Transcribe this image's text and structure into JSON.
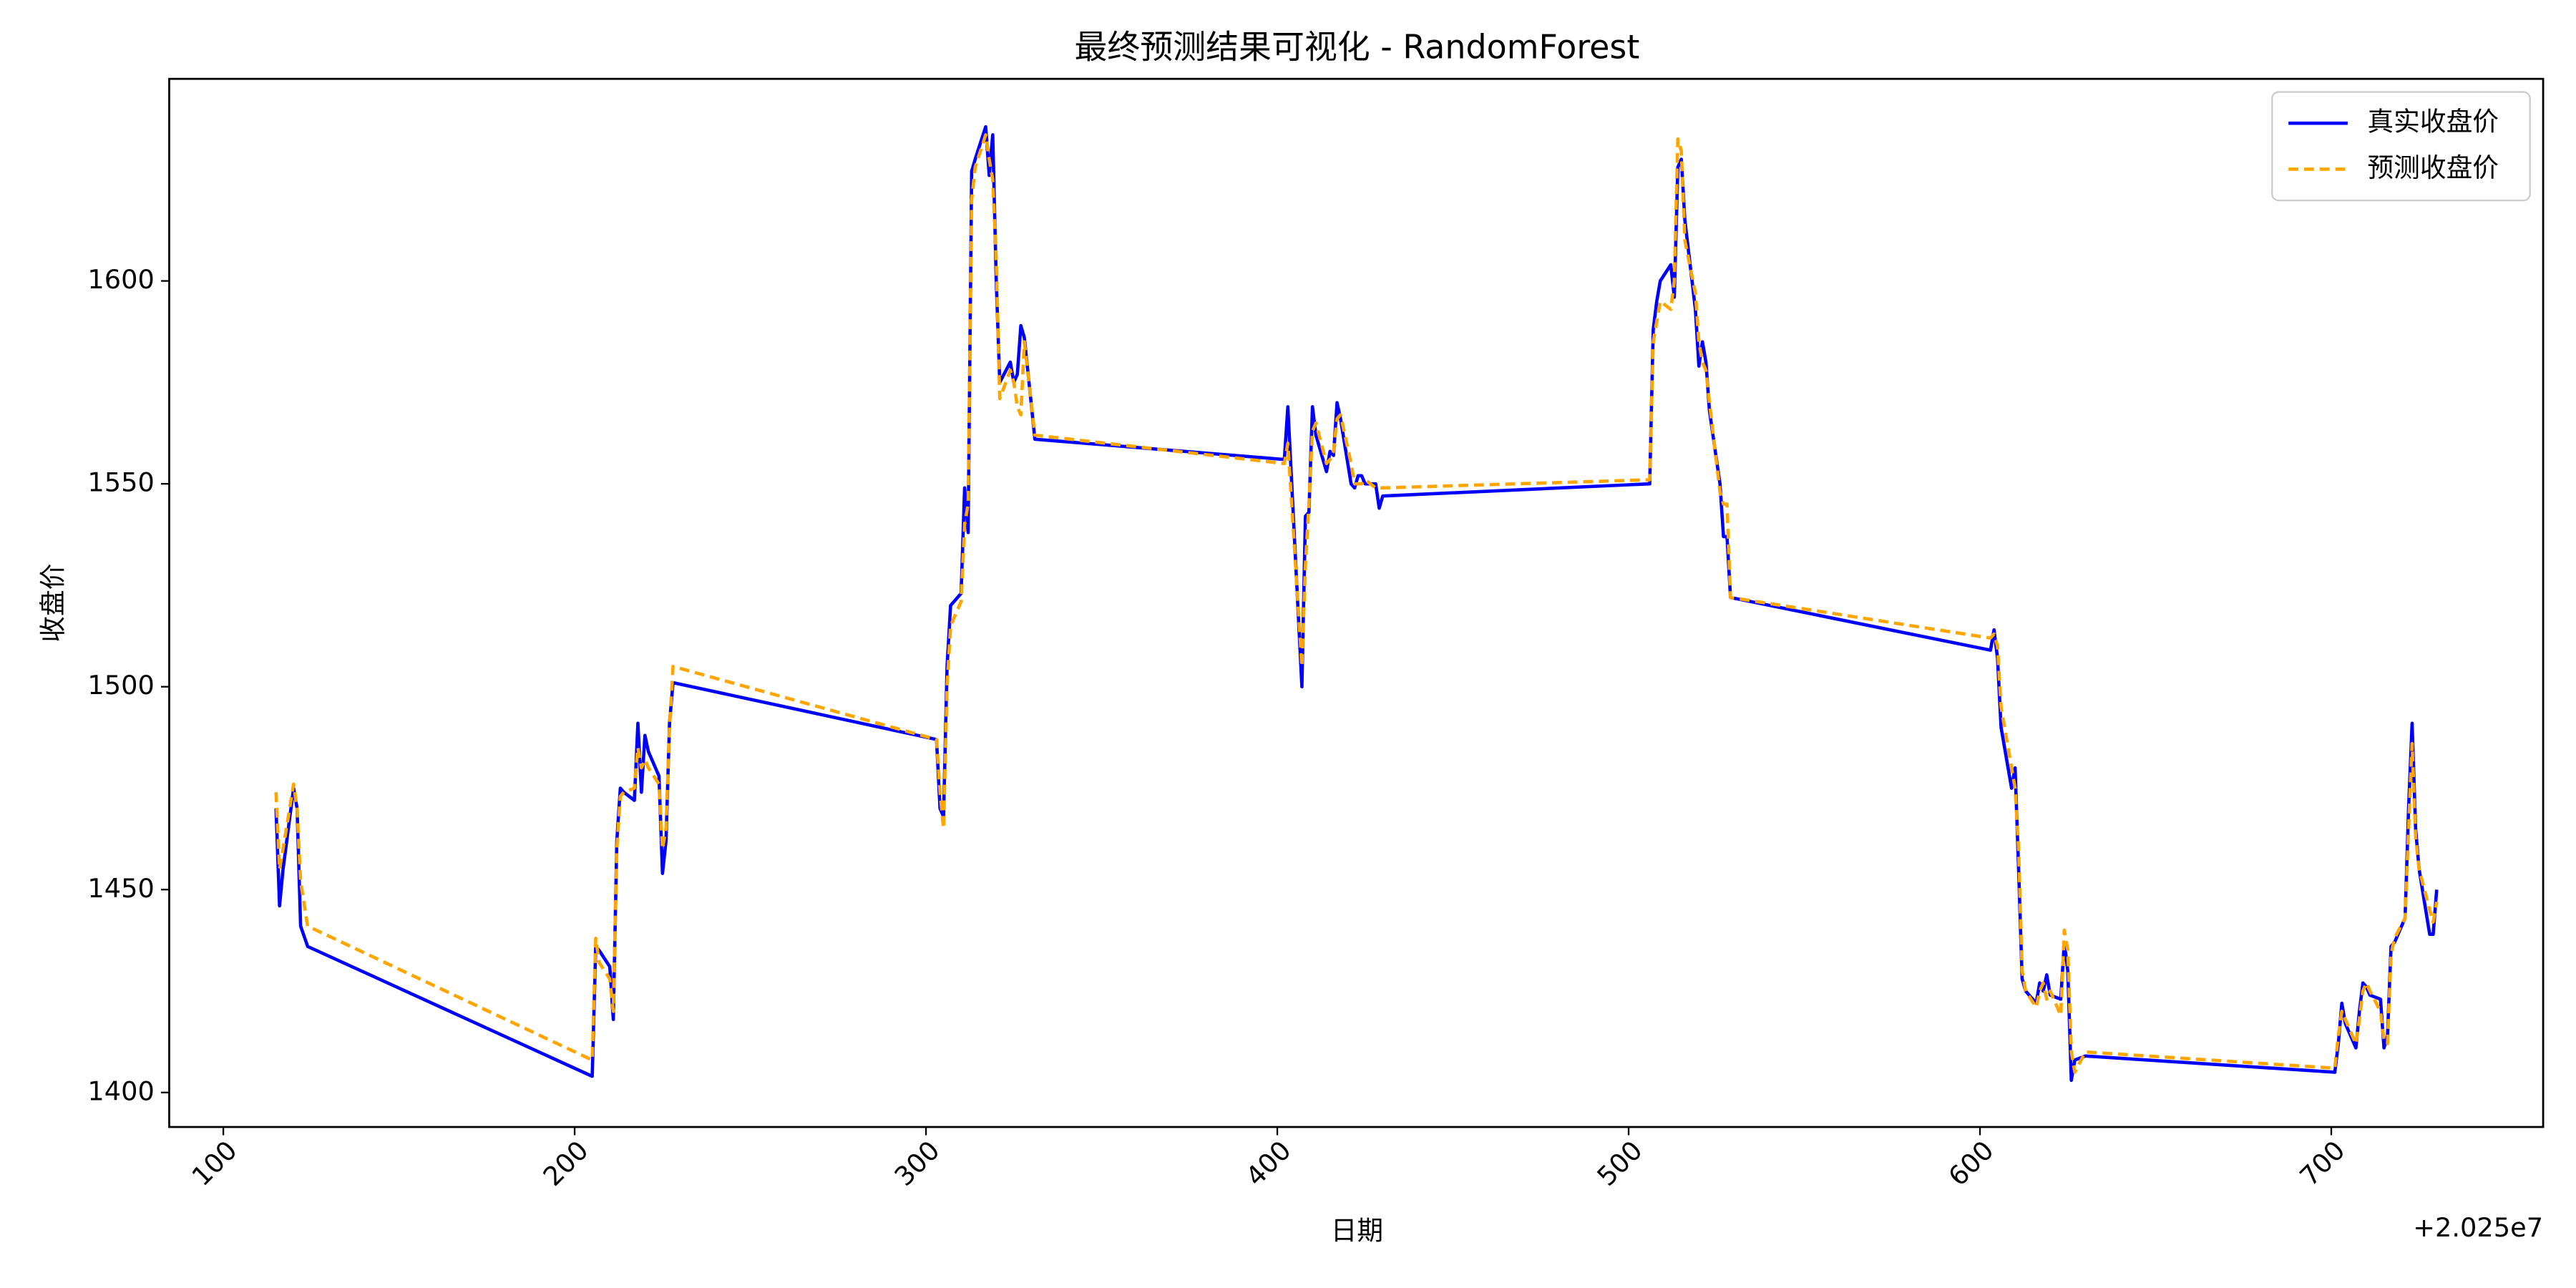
{
  "chart_data": {
    "type": "line",
    "title": "最终预测结果可视化 - RandomForest",
    "xlabel": "日期",
    "ylabel": "收盘价",
    "x_offset_label": "+2.025e7",
    "x": [
      115,
      116,
      117,
      120,
      121,
      122,
      124,
      205,
      206,
      207,
      210,
      211,
      212,
      213,
      214,
      217,
      218,
      219,
      220,
      221,
      224,
      225,
      226,
      227,
      228,
      303,
      304,
      305,
      306,
      307,
      310,
      311,
      312,
      313,
      314,
      317,
      318,
      319,
      320,
      321,
      324,
      325,
      326,
      327,
      328,
      331,
      402,
      403,
      407,
      408,
      409,
      410,
      411,
      414,
      415,
      416,
      417,
      418,
      421,
      422,
      423,
      424,
      425,
      428,
      429,
      430,
      506,
      507,
      508,
      509,
      512,
      513,
      514,
      515,
      516,
      519,
      520,
      521,
      522,
      523,
      526,
      527,
      528,
      529,
      603,
      604,
      605,
      606,
      609,
      610,
      611,
      612,
      613,
      616,
      617,
      618,
      619,
      620,
      623,
      624,
      625,
      626,
      627,
      630,
      701,
      702,
      703,
      704,
      707,
      708,
      709,
      710,
      711,
      714,
      715,
      716,
      717,
      718,
      721,
      722,
      723,
      724,
      725,
      728,
      729,
      730
    ],
    "series": [
      {
        "name": "真实收盘价",
        "color": "#0000ff",
        "dash": false,
        "values": [
          1470,
          1446,
          1455,
          1475,
          1470,
          1441,
          1436,
          1404,
          1436,
          1435,
          1431,
          1418,
          1462,
          1475,
          1474,
          1472,
          1491,
          1474,
          1488,
          1484,
          1478,
          1454,
          1462,
          1491,
          1501,
          1487,
          1470,
          1468,
          1505,
          1520,
          1523,
          1549,
          1538,
          1627,
          1630,
          1638,
          1626,
          1636,
          1600,
          1575,
          1580,
          1575,
          1577,
          1589,
          1586,
          1561,
          1556,
          1569,
          1500,
          1542,
          1543,
          1569,
          1562,
          1553,
          1558,
          1557,
          1570,
          1566,
          1550,
          1549,
          1552,
          1552,
          1550,
          1550,
          1544,
          1547,
          1550,
          1588,
          1595,
          1600,
          1604,
          1596,
          1628,
          1630,
          1615,
          1593,
          1579,
          1585,
          1580,
          1568,
          1550,
          1537,
          1537,
          1522,
          1509,
          1514,
          1507,
          1490,
          1475,
          1480,
          1455,
          1428,
          1425,
          1422,
          1427,
          1425,
          1429,
          1424,
          1423,
          1437,
          1430,
          1403,
          1408,
          1409,
          1405,
          1412,
          1422,
          1417,
          1411,
          1420,
          1427,
          1426,
          1424,
          1423,
          1411,
          1414,
          1436,
          1437,
          1443,
          1470,
          1491,
          1465,
          1455,
          1439,
          1439,
          1450
        ]
      },
      {
        "name": "预测收盘价",
        "color": "#ffa500",
        "dash": true,
        "values": [
          1474,
          1455,
          1460,
          1476,
          1470,
          1452,
          1441,
          1408,
          1438,
          1432,
          1428,
          1420,
          1460,
          1473,
          1474,
          1475,
          1485,
          1480,
          1482,
          1480,
          1476,
          1460,
          1465,
          1490,
          1505,
          1487,
          1474,
          1465,
          1500,
          1515,
          1521,
          1540,
          1545,
          1620,
          1628,
          1636,
          1630,
          1625,
          1605,
          1571,
          1578,
          1575,
          1569,
          1567,
          1585,
          1562,
          1555,
          1560,
          1505,
          1530,
          1545,
          1563,
          1565,
          1555,
          1556,
          1558,
          1566,
          1567,
          1555,
          1550,
          1550,
          1550,
          1551,
          1549,
          1549,
          1549,
          1551,
          1585,
          1590,
          1595,
          1593,
          1600,
          1635,
          1632,
          1610,
          1597,
          1585,
          1580,
          1578,
          1570,
          1548,
          1545,
          1545,
          1522,
          1512,
          1513,
          1510,
          1495,
          1480,
          1475,
          1460,
          1430,
          1425,
          1421,
          1425,
          1427,
          1423,
          1425,
          1419,
          1440,
          1435,
          1410,
          1405,
          1410,
          1406,
          1414,
          1420,
          1418,
          1412,
          1418,
          1425,
          1427,
          1425,
          1420,
          1413,
          1412,
          1434,
          1438,
          1443,
          1465,
          1486,
          1463,
          1455,
          1445,
          1442,
          1447
        ]
      }
    ],
    "xlim": [
      84.6,
      760.3
    ],
    "xticks": [
      100,
      200,
      300,
      400,
      500,
      600,
      700
    ],
    "ylim": [
      1391.5,
      1649.8
    ],
    "yticks": [
      1400,
      1450,
      1500,
      1550,
      1600
    ],
    "grid": false,
    "legend": "upper right"
  }
}
